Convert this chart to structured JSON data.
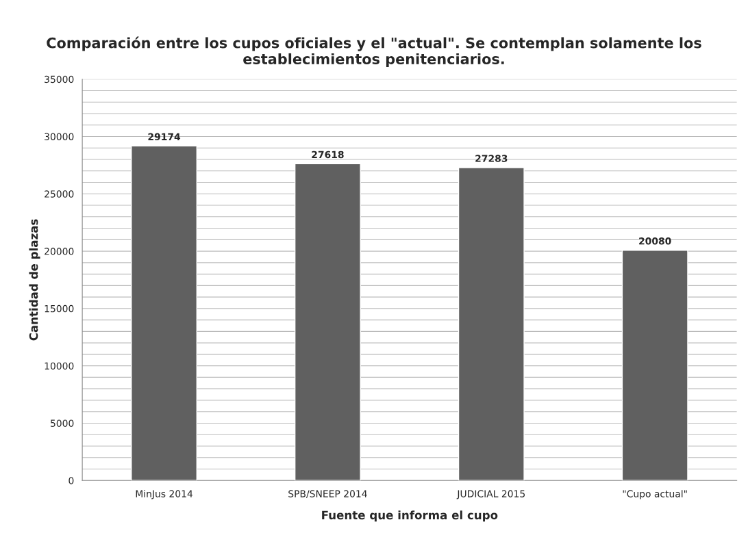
{
  "chart_data": {
    "type": "bar",
    "title": "Comparación entre los cupos oficiales y el \"actual\". Se contemplan solamente los establecimientos penitenciarios.",
    "xlabel": "Fuente que informa el cupo",
    "ylabel": "Cantidad de plazas",
    "categories": [
      "MinJus 2014",
      "SPB/SNEEP 2014",
      "JUDICIAL 2015",
      "\"Cupo actual\""
    ],
    "values": [
      29174,
      27618,
      27283,
      20080
    ],
    "color": "#606060",
    "ylim": [
      0,
      35000
    ],
    "yticks": [
      0,
      {
        "value": 1000,
        "label": null
      },
      {
        "value": 2000,
        "label": null
      },
      {
        "value": 3000,
        "label": null
      },
      {
        "value": 4000,
        "label": null
      },
      5000,
      {
        "value": 6000,
        "label": null
      },
      {
        "value": 7000,
        "label": null
      },
      {
        "value": 8000,
        "label": null
      },
      {
        "value": 9000,
        "label": null
      },
      10000,
      {
        "value": 11000,
        "label": null
      },
      {
        "value": 12000,
        "label": null
      },
      {
        "value": 13000,
        "label": null
      },
      {
        "value": 14000,
        "label": null
      },
      15000,
      {
        "value": 16000,
        "label": null
      },
      {
        "value": 17000,
        "label": null
      },
      {
        "value": 18000,
        "label": null
      },
      {
        "value": 19000,
        "label": null
      },
      20000,
      {
        "value": 21000,
        "label": null
      },
      {
        "value": 22000,
        "label": null
      },
      {
        "value": 23000,
        "label": null
      },
      {
        "value": 24000,
        "label": null
      },
      25000,
      {
        "value": 26000,
        "label": null
      },
      {
        "value": 27000,
        "label": null
      },
      {
        "value": 28000,
        "label": null
      },
      {
        "value": 29000,
        "label": null
      },
      30000,
      {
        "value": 31000,
        "label": null
      },
      {
        "value": 32000,
        "label": null
      },
      {
        "value": 33000,
        "label": null
      },
      {
        "value": 34000,
        "label": null
      },
      35000
    ],
    "grid": "y",
    "data_labels": true
  }
}
